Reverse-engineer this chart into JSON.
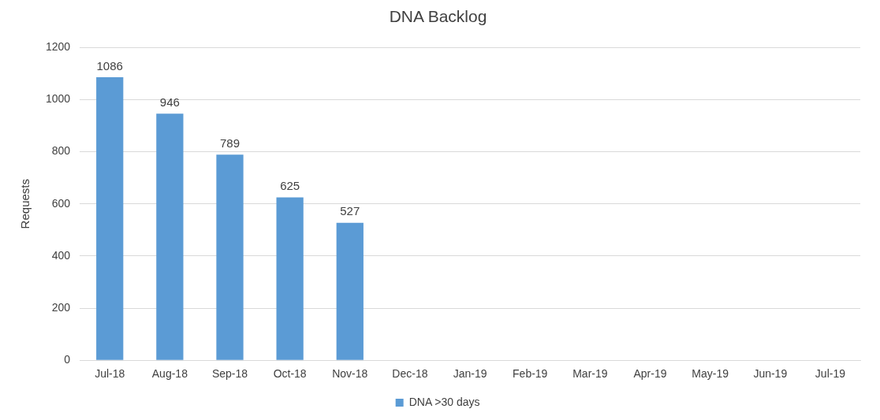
{
  "chart_data": {
    "type": "bar",
    "title": "DNA Backlog",
    "ylabel": "Requests",
    "categories": [
      "Jul-18",
      "Aug-18",
      "Sep-18",
      "Oct-18",
      "Nov-18",
      "Dec-18",
      "Jan-19",
      "Feb-19",
      "Mar-19",
      "Apr-19",
      "May-19",
      "Jun-19",
      "Jul-19"
    ],
    "series": [
      {
        "name": "DNA >30 days",
        "color": "#5b9bd5",
        "values": [
          1086,
          946,
          789,
          625,
          527,
          null,
          null,
          null,
          null,
          null,
          null,
          null,
          null
        ]
      }
    ],
    "ylim": [
      0,
      1200
    ],
    "yticks": [
      0,
      200,
      400,
      600,
      800,
      1000,
      1200
    ],
    "grid": "y",
    "legend": "bottom",
    "data_labels": true
  }
}
